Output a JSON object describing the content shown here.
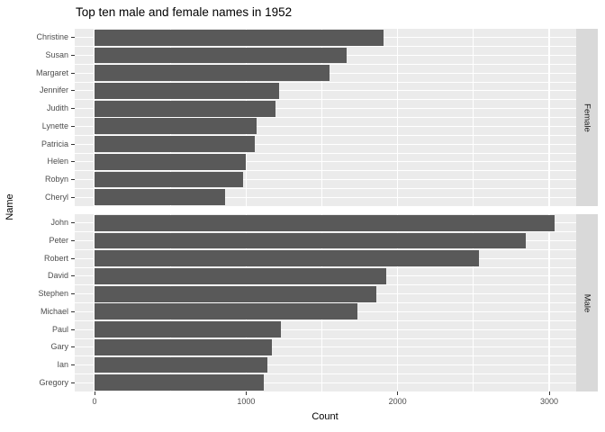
{
  "chart_data": {
    "type": "bar",
    "orientation": "horizontal",
    "title": "Top ten male and female names in 1952",
    "xlabel": "Count",
    "ylabel": "Name",
    "legend": "none",
    "grid": true,
    "x_ticks": [
      0,
      1000,
      2000,
      3000
    ],
    "x_tick_labels": [
      "0",
      "1000",
      "2000",
      "3000"
    ],
    "x_minor_gridlines": [
      500,
      1500,
      2500
    ],
    "xlim_panel": [
      -131,
      3178
    ],
    "facets": [
      {
        "label": "Female",
        "categories": [
          "Christine",
          "Susan",
          "Margaret",
          "Jennifer",
          "Judith",
          "Lynette",
          "Patricia",
          "Helen",
          "Robyn",
          "Cheryl"
        ],
        "values": [
          1905,
          1665,
          1550,
          1220,
          1195,
          1070,
          1060,
          1000,
          980,
          860
        ]
      },
      {
        "label": "Male",
        "categories": [
          "John",
          "Peter",
          "Robert",
          "David",
          "Stephen",
          "Michael",
          "Paul",
          "Gary",
          "Ian",
          "Gregory"
        ],
        "values": [
          3035,
          2845,
          2535,
          1925,
          1860,
          1735,
          1230,
          1170,
          1140,
          1115
        ]
      }
    ]
  },
  "colors": {
    "background": "#FFFFFF",
    "panel_background": "#EBEBEB",
    "bar_fill": "#595959",
    "strip_background": "#D9D9D9",
    "gridline": "#FFFFFF",
    "axis_text": "#4D4D4D",
    "strip_text": "#1A1A1A",
    "title_text": "#000000",
    "tick_mark": "#333333"
  }
}
